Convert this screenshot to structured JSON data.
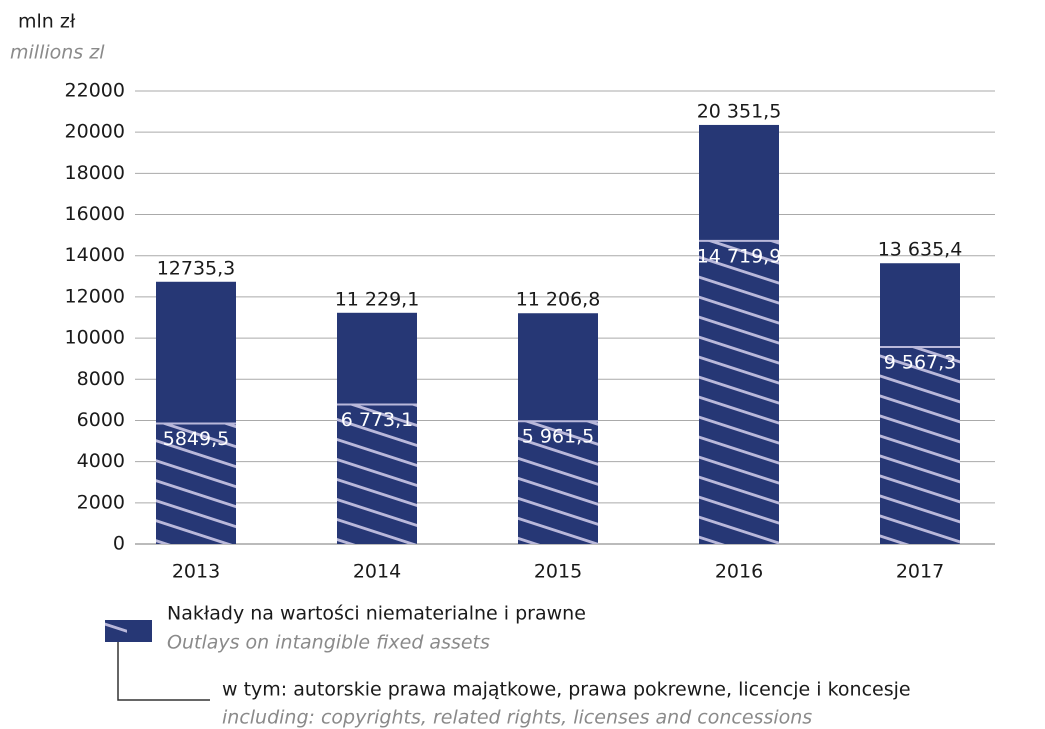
{
  "chart_data": {
    "type": "bar",
    "y_label": "mln zł",
    "y_label_en": "millions zl",
    "categories": [
      "2013",
      "2014",
      "2015",
      "2016",
      "2017"
    ],
    "series": [
      {
        "name": "Nakłady na wartości niematerialne i prawne",
        "name_en": "Outlays on intangible fixed assets",
        "color": "#263775",
        "values": [
          12735.3,
          11229.1,
          11206.8,
          20351.5,
          13635.4
        ],
        "value_labels": [
          "12735,3",
          "11 229,1",
          "11 206,8",
          "20 351,5",
          "13 635,4"
        ]
      },
      {
        "name": "w tym: autorskie prawa majątkowe, prawa pokrewne, licencje i koncesje",
        "name_en": "including: copyrights, related rights, licenses and concessions",
        "color": "#b9b8da",
        "values": [
          5849.5,
          6773.1,
          5961.5,
          14719.9,
          9567.3
        ],
        "value_labels": [
          "5849,5",
          "6 773,1",
          "5 961,5",
          "14 719,9",
          "9 567,3"
        ]
      }
    ],
    "ylim": [
      0,
      22000
    ],
    "yticks": [
      0,
      2000,
      4000,
      6000,
      8000,
      10000,
      12000,
      14000,
      16000,
      18000,
      20000,
      22000
    ],
    "grid": true
  }
}
